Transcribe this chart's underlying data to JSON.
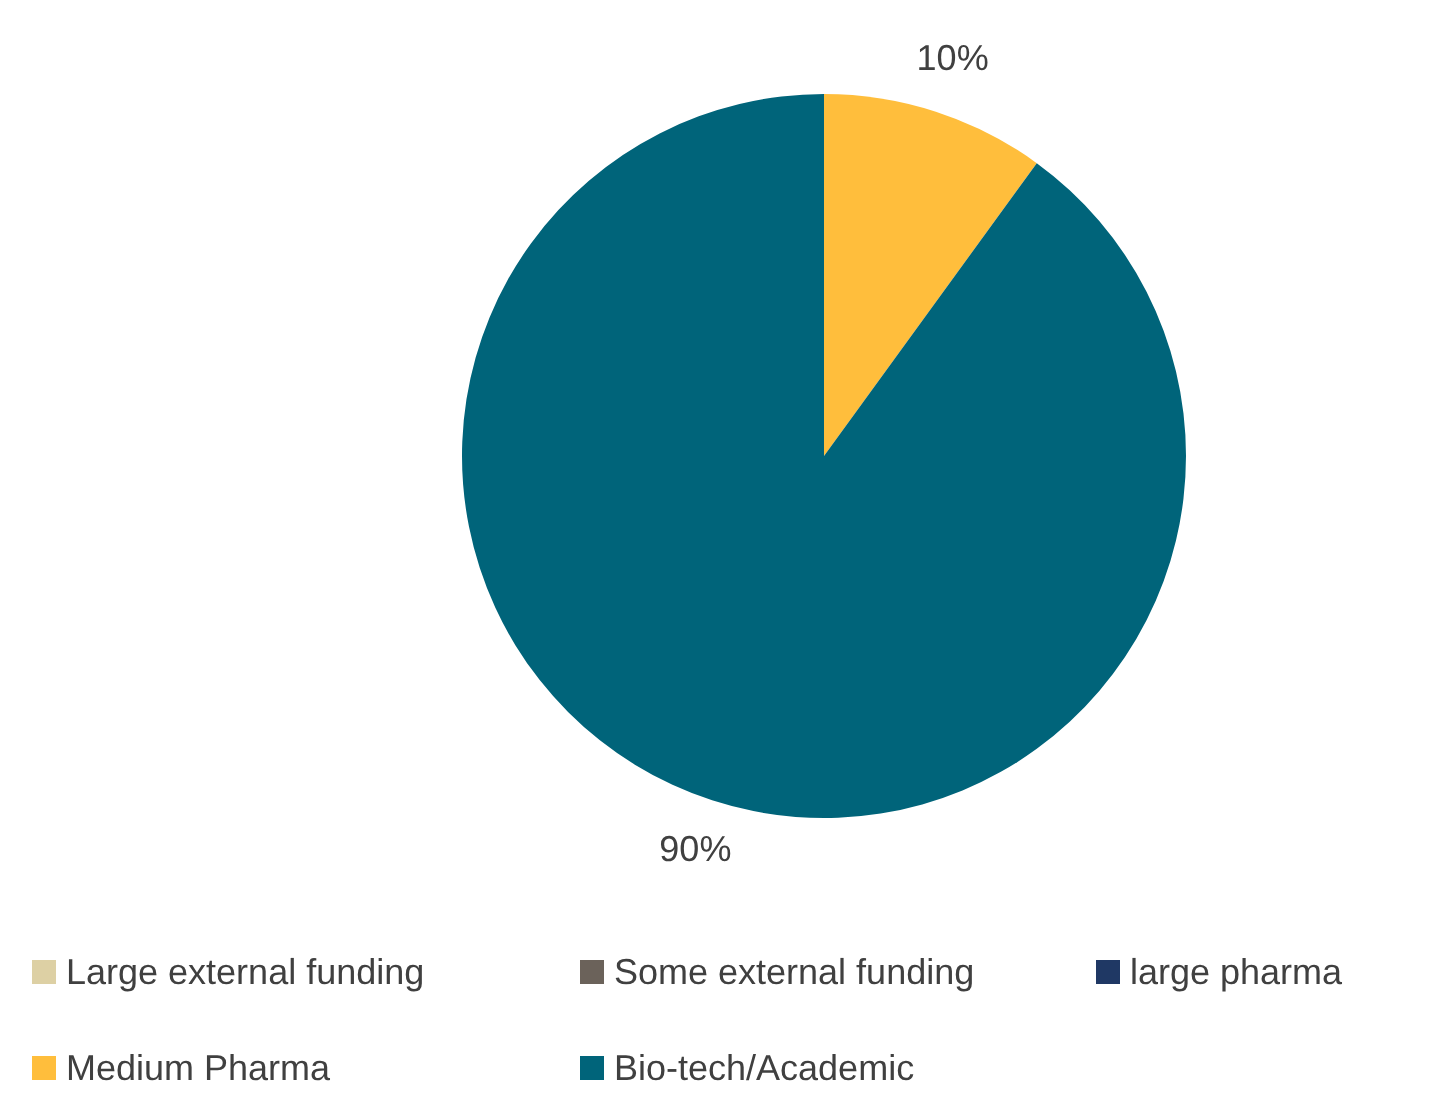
{
  "chart_data": {
    "type": "pie",
    "categories": [
      "Large external funding",
      "Some external funding",
      "large pharma",
      "Medium Pharma",
      "Bio-tech/Academic"
    ],
    "values": [
      0,
      0,
      0,
      10,
      90
    ],
    "colors": [
      "#ddd0a4",
      "#6b625a",
      "#1f3864",
      "#ffbe3c",
      "#00647a"
    ],
    "value_labels": [
      null,
      null,
      null,
      "10%",
      "90%"
    ],
    "legend": "bottom"
  }
}
